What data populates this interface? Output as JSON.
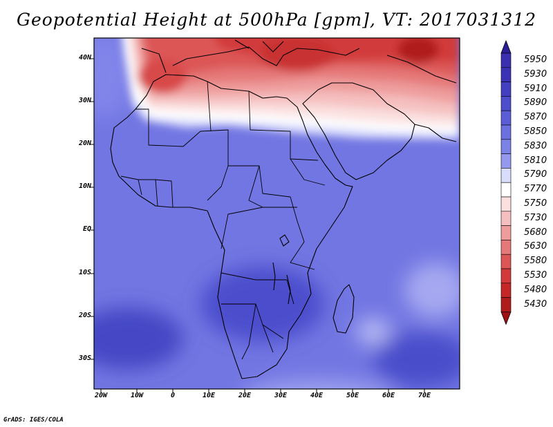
{
  "title": "Geopotential Height at 500hPa [gpm], VT: 2017031312",
  "footer": "GrADS: IGES/COLA",
  "map": {
    "lat_ticks": [
      "40N",
      "30N",
      "20N",
      "10N",
      "EQ",
      "10S",
      "20S",
      "30S"
    ],
    "lon_ticks": [
      "20W",
      "10W",
      "0",
      "10E",
      "20E",
      "30E",
      "40E",
      "50E",
      "60E",
      "70E"
    ]
  },
  "colorbar": {
    "levels": [
      "5950",
      "5930",
      "5910",
      "5890",
      "5870",
      "5850",
      "5830",
      "5810",
      "5790",
      "5770",
      "5750",
      "5730",
      "5680",
      "5630",
      "5580",
      "5530",
      "5480",
      "5430"
    ],
    "colors": [
      "#3a2fae",
      "#3a33b6",
      "#4240c0",
      "#4c4ecc",
      "#5a5dd6",
      "#6a70de",
      "#7c83e6",
      "#9499ee",
      "#d9dcfb",
      "#ffffff",
      "#fbe0e0",
      "#f5bfbf",
      "#ee9c9c",
      "#e57878",
      "#dc5656",
      "#d23a3a",
      "#c52626",
      "#b01c1c"
    ]
  }
}
